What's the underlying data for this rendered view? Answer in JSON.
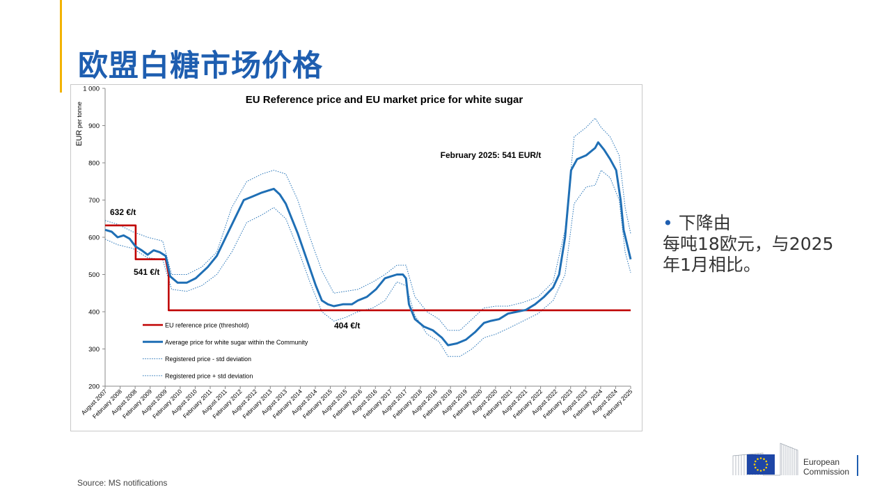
{
  "slide": {
    "title": "欧盟白糖市场价格",
    "bullet_line1": "下降由",
    "bullet_line2": "每吨18欧元，与2025",
    "bullet_line3": "年1月相比。",
    "source": "Source: MS notifications",
    "logo_line1": "European",
    "logo_line2": "Commission"
  },
  "chart_data": {
    "type": "line",
    "title": "EU Reference price and EU market price for white sugar",
    "ylabel_main": "EUR",
    "ylabel_sub": " per tonne",
    "ylim": [
      200,
      1000
    ],
    "yticks": [
      {
        "value": 200,
        "label": "200"
      },
      {
        "value": 300,
        "label": "300"
      },
      {
        "value": 400,
        "label": "400"
      },
      {
        "value": 500,
        "label": "500"
      },
      {
        "value": 600,
        "label": "600"
      },
      {
        "value": 700,
        "label": "700"
      },
      {
        "value": 800,
        "label": "800"
      },
      {
        "value": 900,
        "label": "900"
      },
      {
        "value": 1000,
        "label": "1 000"
      }
    ],
    "xlim": [
      2007.583,
      2025.083
    ],
    "xticks": [
      {
        "value": 2007.583,
        "label": "August 2007"
      },
      {
        "value": 2008.083,
        "label": "February 2008"
      },
      {
        "value": 2008.583,
        "label": "August 2008"
      },
      {
        "value": 2009.083,
        "label": "February 2009"
      },
      {
        "value": 2009.583,
        "label": "August 2009"
      },
      {
        "value": 2010.083,
        "label": "February 2010"
      },
      {
        "value": 2010.583,
        "label": "August 2010"
      },
      {
        "value": 2011.083,
        "label": "February 2011"
      },
      {
        "value": 2011.583,
        "label": "August 2011"
      },
      {
        "value": 2012.083,
        "label": "February 2012"
      },
      {
        "value": 2012.583,
        "label": "August 2012"
      },
      {
        "value": 2013.083,
        "label": "February 2013"
      },
      {
        "value": 2013.583,
        "label": "August 2013"
      },
      {
        "value": 2014.083,
        "label": "February 2014"
      },
      {
        "value": 2014.583,
        "label": "August 2014"
      },
      {
        "value": 2015.083,
        "label": "February 2015"
      },
      {
        "value": 2015.583,
        "label": "August 2015"
      },
      {
        "value": 2016.083,
        "label": "February 2016"
      },
      {
        "value": 2016.583,
        "label": "August 2016"
      },
      {
        "value": 2017.083,
        "label": "February 2017"
      },
      {
        "value": 2017.583,
        "label": "August 2017"
      },
      {
        "value": 2018.083,
        "label": "February 2018"
      },
      {
        "value": 2018.583,
        "label": "August 2018"
      },
      {
        "value": 2019.083,
        "label": "February 2019"
      },
      {
        "value": 2019.583,
        "label": "August 2019"
      },
      {
        "value": 2020.083,
        "label": "February 2020"
      },
      {
        "value": 2020.583,
        "label": "August 2020"
      },
      {
        "value": 2021.083,
        "label": "February 2021"
      },
      {
        "value": 2021.583,
        "label": "August 2021"
      },
      {
        "value": 2022.083,
        "label": "February 2022"
      },
      {
        "value": 2022.583,
        "label": "August 2022"
      },
      {
        "value": 2023.083,
        "label": "February 2023"
      },
      {
        "value": 2023.583,
        "label": "August 2023"
      },
      {
        "value": 2024.083,
        "label": "February 2024"
      },
      {
        "value": 2024.583,
        "label": "August 2024"
      },
      {
        "value": 2025.083,
        "label": "February 2025"
      }
    ],
    "annotations": [
      {
        "text": "February 2025:  541 EUR/t"
      },
      {
        "text": "632 €/t"
      },
      {
        "text": "541 €/t"
      },
      {
        "text": "404 €/t"
      }
    ],
    "series": [
      {
        "name": "EU reference price (threshold)",
        "color": "#c00000",
        "style": "solid-thick",
        "x": [
          2007.583,
          2008.6,
          2008.6,
          2009.6,
          2009.6,
          2009.7,
          2009.7,
          2025.083
        ],
        "y": [
          632,
          632,
          541,
          541,
          541,
          500,
          404,
          404
        ]
      },
      {
        "name": "Average price for white sugar within the Community",
        "color": "#1f6fb5",
        "style": "solid-thick",
        "x": [
          2007.583,
          2007.8,
          2008.0,
          2008.2,
          2008.4,
          2008.6,
          2008.8,
          2009.0,
          2009.2,
          2009.4,
          2009.6,
          2009.75,
          2010.0,
          2010.3,
          2010.6,
          2011.0,
          2011.3,
          2011.6,
          2011.9,
          2012.2,
          2012.5,
          2012.8,
          2013.0,
          2013.2,
          2013.4,
          2013.6,
          2013.8,
          2014.0,
          2014.3,
          2014.6,
          2014.8,
          2015.0,
          2015.2,
          2015.5,
          2015.8,
          2016.0,
          2016.3,
          2016.6,
          2016.9,
          2017.1,
          2017.3,
          2017.5,
          2017.6,
          2017.7,
          2017.9,
          2018.2,
          2018.5,
          2018.8,
          2019.0,
          2019.3,
          2019.6,
          2019.9,
          2020.2,
          2020.4,
          2020.7,
          2021.0,
          2021.3,
          2021.6,
          2021.9,
          2022.2,
          2022.5,
          2022.7,
          2022.9,
          2023.1,
          2023.3,
          2023.6,
          2023.9,
          2024.0,
          2024.2,
          2024.4,
          2024.6,
          2024.75,
          2024.85,
          2025.083
        ],
        "y": [
          620,
          615,
          600,
          605,
          596,
          575,
          565,
          553,
          565,
          560,
          550,
          495,
          478,
          478,
          490,
          520,
          550,
          600,
          650,
          700,
          710,
          720,
          725,
          730,
          715,
          690,
          650,
          610,
          540,
          470,
          430,
          420,
          415,
          420,
          420,
          430,
          440,
          460,
          490,
          495,
          500,
          500,
          490,
          420,
          380,
          360,
          350,
          330,
          310,
          315,
          325,
          345,
          370,
          375,
          380,
          395,
          400,
          405,
          420,
          440,
          465,
          500,
          600,
          780,
          810,
          820,
          840,
          855,
          835,
          810,
          780,
          700,
          620,
          541
        ]
      },
      {
        "name": "Registered price - std deviation",
        "color": "#1f6fb5",
        "style": "dotted",
        "x": [
          2007.583,
          2008.0,
          2008.5,
          2009.0,
          2009.5,
          2009.8,
          2010.3,
          2010.8,
          2011.3,
          2011.8,
          2012.3,
          2012.8,
          2013.2,
          2013.6,
          2014.0,
          2014.4,
          2014.8,
          2015.2,
          2015.6,
          2016.0,
          2016.5,
          2016.9,
          2017.3,
          2017.6,
          2017.9,
          2018.3,
          2018.7,
          2019.0,
          2019.4,
          2019.8,
          2020.2,
          2020.6,
          2021.0,
          2021.5,
          2022.0,
          2022.5,
          2022.9,
          2023.2,
          2023.6,
          2023.9,
          2024.1,
          2024.4,
          2024.7,
          2024.9,
          2025.083
        ],
        "y": [
          595,
          580,
          570,
          545,
          540,
          460,
          455,
          470,
          500,
          560,
          640,
          660,
          680,
          650,
          570,
          480,
          400,
          375,
          385,
          400,
          410,
          430,
          480,
          470,
          390,
          340,
          320,
          280,
          280,
          300,
          330,
          340,
          355,
          375,
          395,
          430,
          500,
          690,
          735,
          740,
          780,
          760,
          700,
          560,
          505
        ]
      },
      {
        "name": "Registered price + std deviation",
        "color": "#1f6fb5",
        "style": "dotted",
        "x": [
          2007.583,
          2008.0,
          2008.5,
          2009.0,
          2009.5,
          2009.8,
          2010.3,
          2010.8,
          2011.3,
          2011.8,
          2012.3,
          2012.8,
          2013.2,
          2013.6,
          2014.0,
          2014.4,
          2014.8,
          2015.2,
          2015.6,
          2016.0,
          2016.5,
          2016.9,
          2017.3,
          2017.6,
          2017.9,
          2018.3,
          2018.7,
          2019.0,
          2019.4,
          2019.8,
          2020.2,
          2020.6,
          2021.0,
          2021.5,
          2022.0,
          2022.5,
          2022.9,
          2023.2,
          2023.6,
          2023.9,
          2024.1,
          2024.4,
          2024.7,
          2024.9,
          2025.083
        ],
        "y": [
          645,
          635,
          615,
          600,
          590,
          500,
          500,
          520,
          560,
          680,
          750,
          770,
          780,
          770,
          700,
          600,
          510,
          450,
          455,
          460,
          480,
          500,
          525,
          525,
          440,
          400,
          380,
          350,
          350,
          380,
          410,
          415,
          415,
          425,
          440,
          480,
          620,
          870,
          895,
          920,
          895,
          870,
          820,
          680,
          610
        ]
      }
    ]
  }
}
